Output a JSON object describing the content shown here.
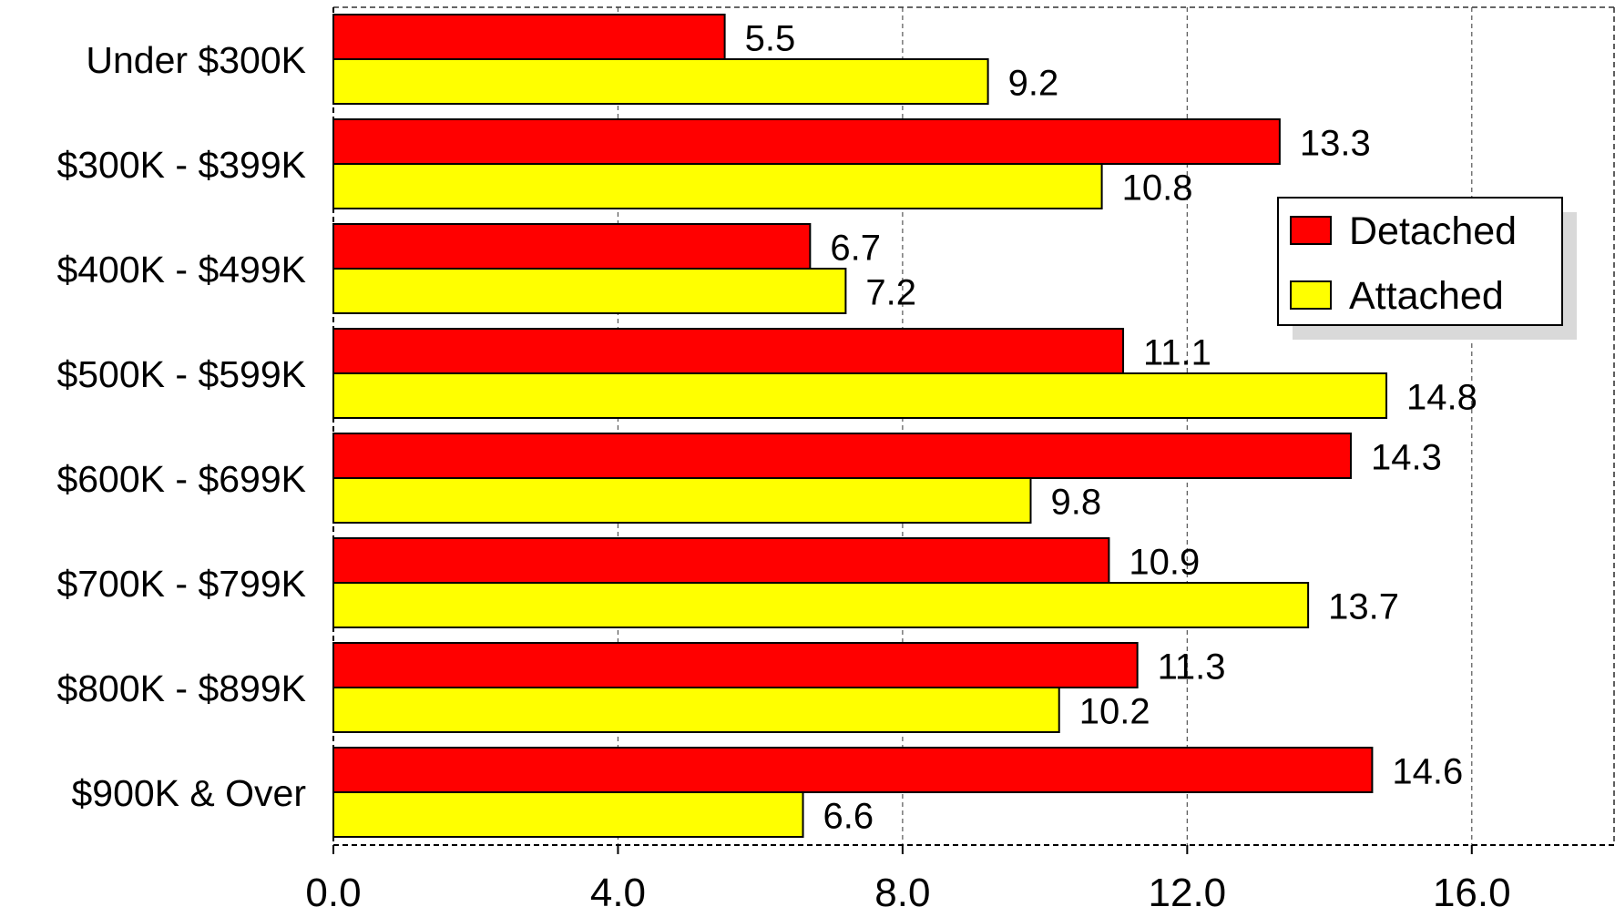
{
  "chart_data": {
    "type": "bar",
    "orientation": "horizontal",
    "title": "",
    "xlabel": "",
    "ylabel": "",
    "categories": [
      "Under $300K",
      "$300K - $399K",
      "$400K - $499K",
      "$500K - $599K",
      "$600K - $699K",
      "$700K - $799K",
      "$800K - $899K",
      "$900K & Over"
    ],
    "series": [
      {
        "name": "Detached",
        "color": "#ff0000",
        "values": [
          5.5,
          13.3,
          6.7,
          11.1,
          14.3,
          10.9,
          11.3,
          14.6
        ],
        "labels": [
          "5.5",
          "13.3",
          "6.7",
          "11.1",
          "14.3",
          "10.9",
          "11.3",
          "14.6"
        ]
      },
      {
        "name": "Attached",
        "color": "#ffff00",
        "values": [
          9.2,
          10.8,
          7.2,
          14.8,
          9.8,
          13.7,
          10.2,
          6.6
        ],
        "labels": [
          "9.2",
          "10.8",
          "7.2",
          "14.8",
          "9.8",
          "13.7",
          "10.2",
          "6.6"
        ]
      }
    ],
    "xlim": [
      0,
      18
    ],
    "x_ticks": [
      0,
      4,
      8,
      12,
      16
    ],
    "x_tick_labels": [
      "0.0",
      "4.0",
      "8.0",
      "12.0",
      "16.0"
    ],
    "grid": "vertical dashed",
    "legend_position": "right"
  }
}
